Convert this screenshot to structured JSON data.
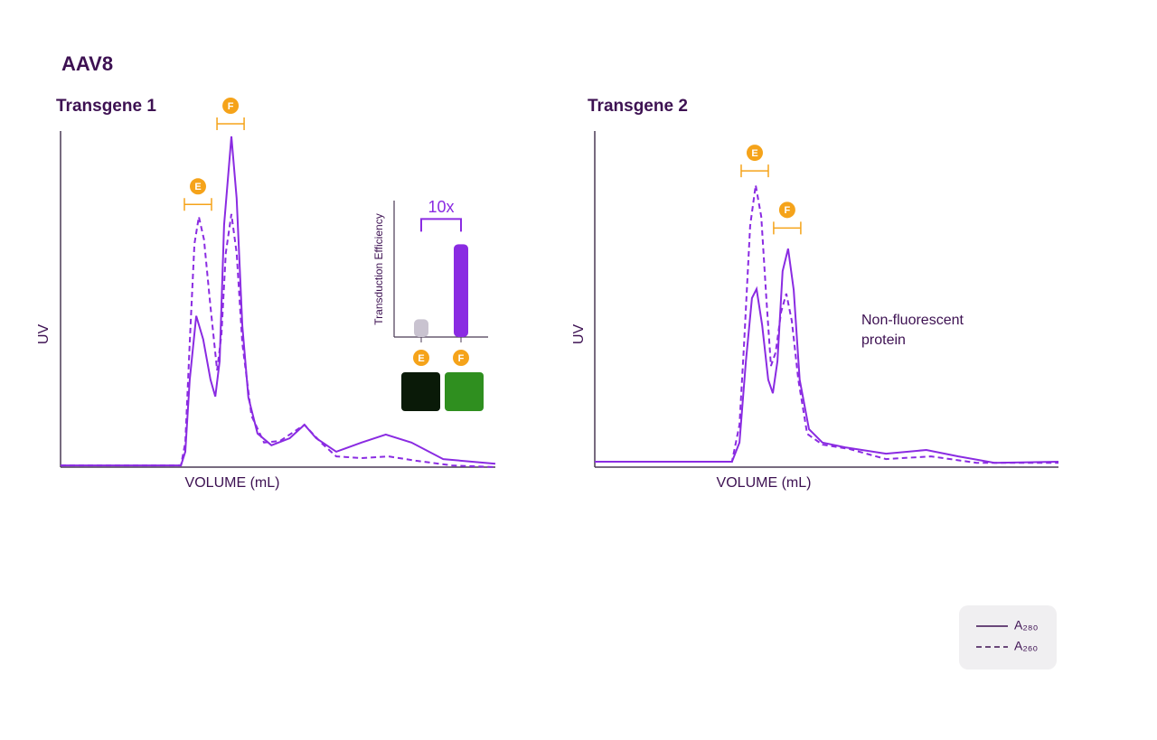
{
  "title": "AAV8",
  "legend_position": "bottom right",
  "chart_data": [
    {
      "type": "line",
      "title": "Transgene 1",
      "ylabel": "UV",
      "xlabel": "VOLUME (mL)",
      "xlim": [
        0,
        100
      ],
      "ylim": [
        0,
        100
      ],
      "series": [
        {
          "name": "A₂₈₀",
          "color": "#8a2be2",
          "style": "solid",
          "x": [
            0,
            27.7,
            28.7,
            29.7,
            31.2,
            32.8,
            34.5,
            35.6,
            36.6,
            37.6,
            39.3,
            40.5,
            41.8,
            43.2,
            45.3,
            48.5,
            52.7,
            56.1,
            58.8,
            63.4,
            69.2,
            74.8,
            80.7,
            88,
            100
          ],
          "values": [
            0.5,
            0.5,
            4.6,
            26,
            45,
            38,
            26,
            21,
            31.5,
            72,
            98.4,
            80,
            42,
            20.7,
            10,
            6.5,
            8.6,
            12.6,
            8.6,
            4.6,
            7.3,
            9.7,
            7.3,
            2.4,
            1
          ]
        },
        {
          "name": "A₂₆₀",
          "color": "#8a2be2",
          "style": "dashed",
          "x": [
            0,
            27.7,
            28.7,
            29.7,
            30.8,
            31.8,
            33,
            34.5,
            36,
            37,
            38,
            39.3,
            40.5,
            41.8,
            43.9,
            46.8,
            50.5,
            56.1,
            59.9,
            63.4,
            69.2,
            75.4,
            81.7,
            90,
            100
          ],
          "values": [
            0.5,
            0.5,
            7.3,
            37,
            66.4,
            74.5,
            67.7,
            47.6,
            28.8,
            39.5,
            63.7,
            75.3,
            63.7,
            36.8,
            15.3,
            7.3,
            7.8,
            12.6,
            7.3,
            3.2,
            2.7,
            3.2,
            1.9,
            0.5,
            0
          ]
        }
      ],
      "annotations": [
        {
          "label": "E",
          "x": 31.6,
          "y": 76
        },
        {
          "label": "F",
          "x": 39.1,
          "y": 100
        }
      ]
    },
    {
      "type": "line",
      "title": "Transgene 2",
      "ylabel": "UV",
      "xlabel": "VOLUME (mL)",
      "xlim": [
        0,
        100
      ],
      "ylim": [
        0,
        100
      ],
      "note": [
        "Non-fluorescent",
        "protein"
      ],
      "series": [
        {
          "name": "A₂₈₀",
          "color": "#8a2be2",
          "style": "solid",
          "x": [
            0,
            29.6,
            31.2,
            32.6,
            33.9,
            34.9,
            36.1,
            37.4,
            38.4,
            39.4,
            40.5,
            41.7,
            42.9,
            44.2,
            46.2,
            49.1,
            54,
            62.8,
            71.5,
            78.4,
            86.2,
            100
          ],
          "values": [
            1.6,
            1.6,
            7.3,
            31.5,
            50.3,
            53,
            42.2,
            26,
            22,
            31.5,
            58.3,
            65,
            52.7,
            26,
            11.3,
            7.3,
            5.9,
            4,
            5.1,
            3.2,
            1.3,
            1.6
          ]
        },
        {
          "name": "A₂₆₀",
          "color": "#8a2be2",
          "style": "dashed",
          "x": [
            0,
            29.6,
            31.2,
            32.2,
            33.5,
            34.7,
            35.9,
            37,
            38,
            39,
            40.2,
            41.3,
            42.5,
            43.9,
            45.8,
            49.1,
            54.9,
            62.8,
            72.5,
            82.3,
            100
          ],
          "values": [
            1.6,
            1.6,
            12.6,
            36.8,
            71.8,
            83.9,
            74.5,
            50.3,
            30.1,
            34.1,
            46.2,
            51.6,
            43.5,
            26,
            9.9,
            6.7,
            5.4,
            2.4,
            3.2,
            1.3,
            1.3
          ]
        }
      ],
      "annotations": [
        {
          "label": "E",
          "x": 34.5,
          "y": 86
        },
        {
          "label": "F",
          "x": 41.5,
          "y": 69
        }
      ]
    },
    {
      "type": "bar",
      "ylabel": "Transduction Efficiency",
      "categories": [
        "E",
        "F"
      ],
      "values": [
        13,
        68
      ],
      "colors": [
        "#c9c3d0",
        "#8a2be2"
      ],
      "ylim": [
        0,
        100
      ],
      "annotation": "10x"
    }
  ]
}
